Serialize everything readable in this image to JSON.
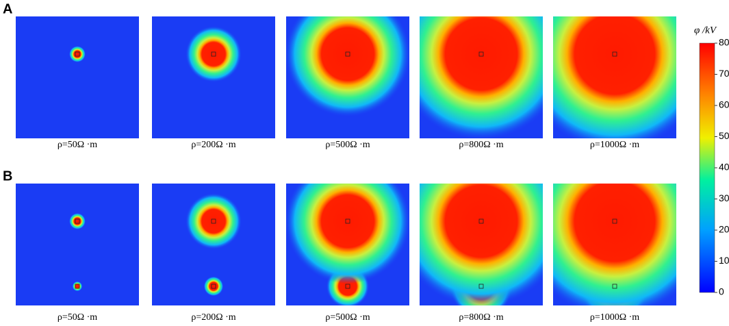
{
  "rows": [
    {
      "label": "A",
      "captions": [
        "ρ=50Ω ·m",
        "ρ=200Ω ·m",
        "ρ=500Ω ·m",
        "ρ=800Ω ·m",
        "ρ=1000Ω ·m"
      ]
    },
    {
      "label": "B",
      "captions": [
        "ρ=50Ω ·m",
        "ρ=200Ω ·m",
        "ρ=500Ω ·m",
        "ρ=800Ω ·m",
        "ρ=1000Ω ·m"
      ]
    }
  ],
  "colorbar": {
    "title": "φ /kV",
    "lim": [
      0,
      80
    ],
    "ticks": [
      0,
      10,
      20,
      30,
      40,
      50,
      60,
      70,
      80
    ]
  }
}
